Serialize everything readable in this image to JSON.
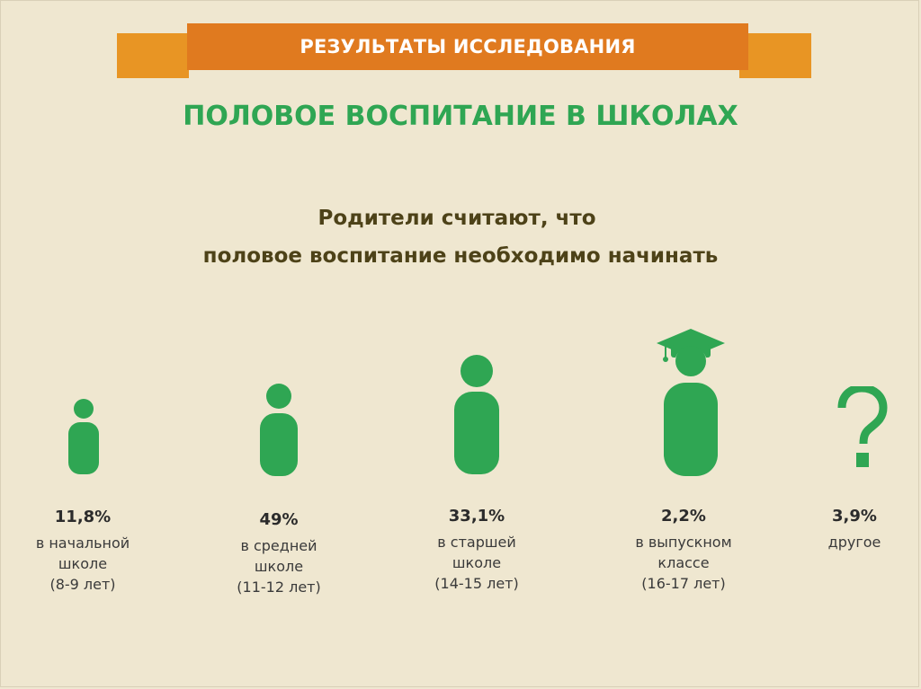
{
  "banner": {
    "text": "РЕЗУЛЬТАТЫ ИССЛЕДОВАНИЯ"
  },
  "title": "ПОЛОВОЕ ВОСПИТАНИЕ В ШКОЛАХ",
  "subtitle": {
    "line1": "Родители считают, что",
    "line2": "половое воспитание необходимо начинать"
  },
  "colors": {
    "accent_green": "#2fa653",
    "banner_orange": "#e07a1f",
    "background": "#efe7d0"
  },
  "items": [
    {
      "icon": "child-small-icon",
      "percent": "11,8%",
      "line1": "в начальной",
      "line2": "школе",
      "line3": "(8-9 лет)"
    },
    {
      "icon": "child-medium-icon",
      "percent": "49%",
      "line1": "в средней",
      "line2": "школе",
      "line3": "(11-12 лет)"
    },
    {
      "icon": "teen-icon",
      "percent": "33,1%",
      "line1": "в старшей",
      "line2": "школе",
      "line3": "(14-15 лет)"
    },
    {
      "icon": "graduate-icon",
      "percent": "2,2%",
      "line1": "в выпускном",
      "line2": "классе",
      "line3": "(16-17 лет)"
    },
    {
      "icon": "question-mark-icon",
      "percent": "3,9%",
      "line1": "другое",
      "line2": "",
      "line3": ""
    }
  ]
}
